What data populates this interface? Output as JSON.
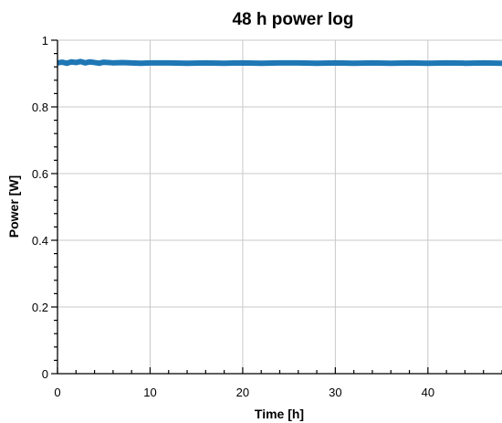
{
  "chart_data": {
    "type": "line",
    "title": "48 h power log",
    "xlabel": "Time [h]",
    "ylabel": "Power [W]",
    "xlim": [
      0,
      48
    ],
    "ylim": [
      0,
      1
    ],
    "xticks": [
      0,
      10,
      20,
      30,
      40
    ],
    "yticks": [
      0,
      0.2,
      0.4,
      0.6,
      0.8,
      1
    ],
    "xtick_labels": [
      "0",
      "10",
      "20",
      "30",
      "40"
    ],
    "ytick_labels": [
      "0",
      "0.2",
      "0.4",
      "0.6",
      "0.8",
      "1"
    ],
    "grid": true,
    "series": [
      {
        "color": "#1f77b4",
        "x": [
          0,
          0.5,
          1,
          1.5,
          2,
          2.5,
          3,
          3.5,
          4,
          4.5,
          5,
          6,
          7,
          8,
          9,
          10,
          12,
          14,
          16,
          18,
          20,
          22,
          24,
          26,
          28,
          30,
          32,
          34,
          36,
          38,
          40,
          42,
          44,
          46,
          48
        ],
        "y": [
          0.932,
          0.934,
          0.931,
          0.935,
          0.933,
          0.936,
          0.932,
          0.935,
          0.933,
          0.931,
          0.934,
          0.932,
          0.933,
          0.932,
          0.931,
          0.932,
          0.932,
          0.931,
          0.932,
          0.931,
          0.932,
          0.931,
          0.932,
          0.932,
          0.931,
          0.932,
          0.931,
          0.932,
          0.931,
          0.932,
          0.931,
          0.932,
          0.931,
          0.932,
          0.931
        ]
      }
    ]
  }
}
